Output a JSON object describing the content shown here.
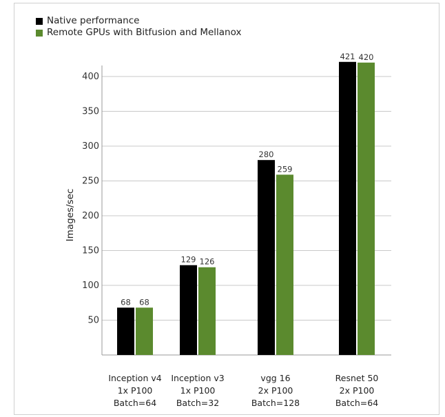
{
  "colors": {
    "native": "#000000",
    "remote": "#5b8a2e"
  },
  "legend": [
    {
      "label": "Native performance",
      "color": "#000000"
    },
    {
      "label": "Remote GPUs with Bitfusion and Mellanox",
      "color": "#5b8a2e"
    }
  ],
  "chart_data": {
    "type": "bar",
    "ylabel": "Images/sec",
    "ylim": [
      0,
      400
    ],
    "yticks": [
      50,
      100,
      150,
      200,
      250,
      300,
      350,
      400
    ],
    "grid": true,
    "legend_position": "top-left",
    "categories": [
      {
        "lines": [
          "Inception v4",
          "1x P100",
          "Batch=64"
        ]
      },
      {
        "lines": [
          "Inception v3",
          "1x P100",
          "Batch=32"
        ]
      },
      {
        "lines": [
          "vgg 16",
          "2x P100",
          "Batch=128"
        ]
      },
      {
        "lines": [
          "Resnet 50",
          "2x P100",
          "Batch=64"
        ]
      }
    ],
    "series": [
      {
        "name": "Native performance",
        "values": [
          68,
          129,
          280,
          421
        ],
        "labels": [
          "68",
          "129",
          "280",
          "421"
        ]
      },
      {
        "name": "Remote GPUs with Bitfusion and Mellanox",
        "values": [
          68,
          126,
          259,
          420
        ],
        "labels": [
          "68",
          "126",
          "259",
          "420"
        ]
      }
    ]
  }
}
